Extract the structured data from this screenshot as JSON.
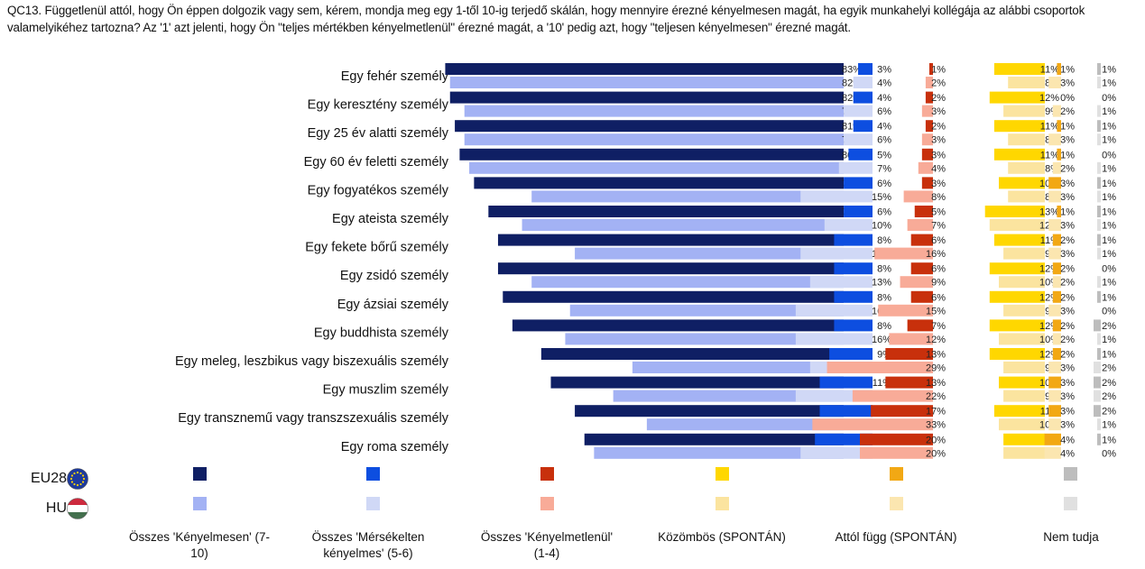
{
  "header": {
    "title": "QC13. Függetlenül attól, hogy Ön éppen dolgozik vagy sem, kérem, mondja meg egy 1-től 10-ig terjedő skálán, hogy mennyire érezné kényelmesen magát, ha egyik munkahelyi kollégája az alábbi csoportok valamelyikéhez tartozna? Az '1' azt jelenti, hogy Ön \"teljes mértékben kényelmetlenül\" érezné magát, a '10' pedig azt, hogy \"teljesen kényelmesen\" érezné magát."
  },
  "legend": {
    "countries": [
      "EU28",
      "HU"
    ],
    "flag_icons": [
      "eu-flag-icon",
      "hungary-flag-icon"
    ],
    "categories": [
      "Összes 'Kényelmesen' (7-10)",
      "Összes 'Mérsékelten kényelmes' (5-6)",
      "Összes 'Kényelmetlenül' (1-4)",
      "Közömbös (SPONTÁN)",
      "Attól függ (SPONTÁN)",
      "Nem tudja"
    ]
  },
  "colors": {
    "EU28": [
      "#0f1f64",
      "#0d4ee0",
      "#c8300c",
      "#ffd700",
      "#f2a814",
      "#bdbdbd"
    ],
    "HU": [
      "#a3b2f4",
      "#d0d8f6",
      "#f8ab98",
      "#fbe49f",
      "#fbe6b0",
      "#e0e0e0"
    ]
  },
  "chart_data": {
    "type": "bar",
    "orientation": "horizontal",
    "value_unit": "%",
    "categories": [
      "Egy fehér személy",
      "Egy keresztény személy",
      "Egy 25 év alatti személy",
      "Egy 60 év feletti személy",
      "Egy fogyatékos személy",
      "Egy ateista személy",
      "Egy fekete bőrű személy",
      "Egy zsidó személy",
      "Egy ázsiai személy",
      "Egy buddhista személy",
      "Egy meleg, leszbikus vagy biszexuális személy",
      "Egy muszlim személy",
      "Egy transznemű vagy transzszexuális személy",
      "Egy roma személy"
    ],
    "series": [
      {
        "name": "Összes 'Kényelmesen' (7-10)",
        "EU28": [
          83,
          82,
          81,
          80,
          77,
          74,
          72,
          72,
          71,
          69,
          63,
          61,
          56,
          54
        ],
        "HU": [
          82,
          79,
          79,
          78,
          65,
          67,
          56,
          65,
          57,
          58,
          44,
          48,
          41,
          52
        ]
      },
      {
        "name": "Összes 'Mérsékelten kényelmes' (5-6)",
        "EU28": [
          3,
          4,
          4,
          5,
          6,
          6,
          8,
          8,
          8,
          8,
          9,
          11,
          11,
          12
        ],
        "HU": [
          4,
          6,
          6,
          7,
          15,
          10,
          15,
          13,
          16,
          16,
          13,
          16,
          12,
          15
        ]
      },
      {
        "name": "Összes 'Kényelmetlenül' (1-4)",
        "EU28": [
          1,
          2,
          2,
          3,
          3,
          5,
          6,
          6,
          6,
          7,
          13,
          13,
          17,
          20
        ],
        "HU": [
          2,
          3,
          3,
          4,
          8,
          7,
          16,
          9,
          15,
          12,
          29,
          22,
          33,
          20
        ]
      },
      {
        "name": "Közömbös (SPONTÁN)",
        "EU28": [
          11,
          12,
          11,
          11,
          10,
          13,
          11,
          12,
          12,
          12,
          12,
          10,
          11,
          9
        ],
        "HU": [
          8,
          9,
          8,
          8,
          8,
          12,
          9,
          10,
          9,
          10,
          9,
          9,
          10,
          9
        ]
      },
      {
        "name": "Attól függ (SPONTÁN)",
        "EU28": [
          1,
          0,
          1,
          1,
          3,
          1,
          2,
          2,
          2,
          2,
          2,
          3,
          3,
          4
        ],
        "HU": [
          3,
          2,
          3,
          2,
          3,
          3,
          3,
          2,
          3,
          2,
          3,
          3,
          3,
          4
        ]
      },
      {
        "name": "Nem tudja",
        "EU28": [
          1,
          0,
          1,
          0,
          1,
          1,
          1,
          0,
          1,
          2,
          1,
          2,
          2,
          1
        ],
        "HU": [
          1,
          1,
          1,
          1,
          1,
          1,
          1,
          1,
          0,
          1,
          2,
          2,
          1,
          0
        ]
      }
    ]
  }
}
